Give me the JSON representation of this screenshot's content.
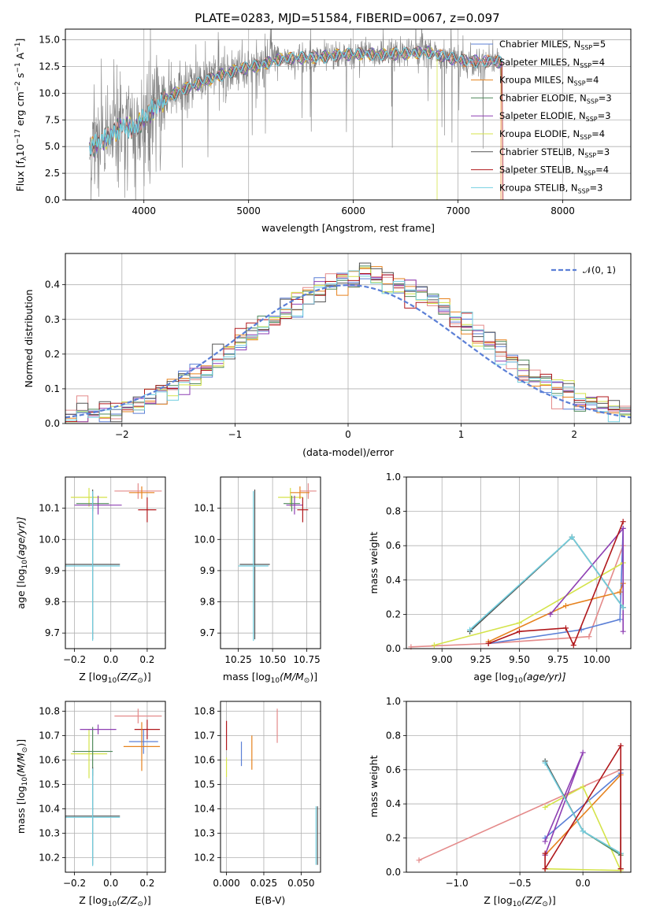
{
  "figure": {
    "title": "PLATE=0283, MJD=51584, FIBERID=0067, z=0.097"
  },
  "models": [
    {
      "key": "chabrier_miles",
      "label": "Chabrier MILES, N",
      "nssp": "5",
      "color": "#5b7fd6"
    },
    {
      "key": "salpeter_miles",
      "label": "Salpeter MILES, N",
      "nssp": "4",
      "color": "#e48a8a"
    },
    {
      "key": "kroupa_miles",
      "label": "Kroupa MILES, N",
      "nssp": "4",
      "color": "#e6821e"
    },
    {
      "key": "chabrier_elodie",
      "label": "Chabrier ELODIE, N",
      "nssp": "3",
      "color": "#4f8a5c"
    },
    {
      "key": "salpeter_elodie",
      "label": "Salpeter ELODIE, N",
      "nssp": "3",
      "color": "#8e3fb3"
    },
    {
      "key": "kroupa_elodie",
      "label": "Kroupa ELODIE, N",
      "nssp": "4",
      "color": "#d4e34a"
    },
    {
      "key": "chabrier_stelib",
      "label": "Chabrier STELIB, N",
      "nssp": "3",
      "color": "#555555"
    },
    {
      "key": "salpeter_stelib",
      "label": "Salpeter STELIB, N",
      "nssp": "4",
      "color": "#b0181c"
    },
    {
      "key": "kroupa_stelib",
      "label": "Kroupa STELIB, N",
      "nssp": "3",
      "color": "#72cfe0"
    }
  ],
  "chart_data": [
    {
      "id": "spectrum",
      "type": "line",
      "xlabel": "wavelength [Angstrom, rest frame]",
      "ylabel": "Flux [f",
      "ylabel_sub": "λ",
      "ylabel_rest": "10",
      "ylabel_exp1": "−17",
      "ylabel_mid": " erg cm",
      "ylabel_exp2": "−2",
      "ylabel_mid2": " s",
      "ylabel_exp3": "−1",
      "ylabel_mid3": " A",
      "ylabel_exp4": "−1",
      "ylabel_end": "]",
      "xlim": [
        3250,
        8650
      ],
      "ylim": [
        0,
        16
      ],
      "xticks": [
        4000,
        5000,
        6000,
        7000,
        8000
      ],
      "yticks": [
        "0.0",
        "2.5",
        "5.0",
        "7.5",
        "10.0",
        "12.5",
        "15.0"
      ],
      "legend_sub": "SSP",
      "legend_position": "upper right",
      "continuum_knots": [
        [
          3480,
          4.8
        ],
        [
          3600,
          5.5
        ],
        [
          3700,
          6.2
        ],
        [
          3800,
          7.0
        ],
        [
          3900,
          6.6
        ],
        [
          4000,
          7.6
        ],
        [
          4100,
          8.6
        ],
        [
          4200,
          9.4
        ],
        [
          4300,
          10.0
        ],
        [
          4500,
          10.8
        ],
        [
          4700,
          11.6
        ],
        [
          4900,
          12.2
        ],
        [
          5100,
          12.6
        ],
        [
          5300,
          13.2
        ],
        [
          5500,
          13.3
        ],
        [
          5700,
          13.4
        ],
        [
          5900,
          13.6
        ],
        [
          6100,
          13.7
        ],
        [
          6300,
          13.6
        ],
        [
          6500,
          13.7
        ],
        [
          6700,
          13.9
        ],
        [
          6900,
          13.3
        ],
        [
          7100,
          13.0
        ],
        [
          7300,
          13.0
        ],
        [
          7420,
          12.9
        ]
      ],
      "drops": [
        {
          "model": "kroupa_elodie",
          "x": 6800
        },
        {
          "model": "kroupa_miles",
          "x": 7410
        },
        {
          "model": "salpeter_stelib",
          "x": 7430
        }
      ]
    },
    {
      "id": "residuals",
      "type": "step-histogram",
      "xlabel": "(data-model)/error",
      "ylabel": "Normed distribution",
      "xlim": [
        -2.5,
        2.5
      ],
      "ylim": [
        0,
        0.49
      ],
      "xticks": [
        "−2",
        "−1",
        "0",
        "1",
        "2"
      ],
      "yticks": [
        "0.0",
        "0.1",
        "0.2",
        "0.3",
        "0.4"
      ],
      "gaussian_label": "𝒩(0, 1)",
      "gaussian": {
        "mean": 0,
        "sigma": 1
      },
      "bin_width": 0.1
    },
    {
      "id": "age_vs_Z",
      "type": "errorbar",
      "xlabel": "Z [log",
      "xlabel_sub": "10",
      "xlabel_rest": "(Z/Z",
      "xlabel_sun": "⊙",
      "xlabel_end": ")]",
      "ylabel": "age  [log",
      "ylabel_sub": "10",
      "ylabel_rest": "(age/yr)]",
      "xlim": [
        -0.25,
        0.3
      ],
      "ylim": [
        9.65,
        10.2
      ],
      "xticks": [
        "−0.2",
        "0.0",
        "0.2"
      ],
      "yticks": [
        "9.7",
        "9.8",
        "9.9",
        "10.0",
        "10.1"
      ],
      "points": [
        {
          "model": "kroupa_elodie",
          "x": -0.12,
          "xerr": 0.1,
          "y": 10.135,
          "yerr": 0.03
        },
        {
          "model": "salpeter_elodie",
          "x": -0.07,
          "xerr": 0.13,
          "y": 10.11,
          "yerr": 0.03
        },
        {
          "model": "chabrier_elodie",
          "x": -0.1,
          "xerr": 0.09,
          "y": 10.115,
          "yerr": 0.025
        },
        {
          "model": "salpeter_miles",
          "x": 0.15,
          "xerr": 0.13,
          "y": 10.155,
          "yerr": 0.025
        },
        {
          "model": "kroupa_miles",
          "x": 0.17,
          "xerr": 0.07,
          "y": 10.15,
          "yerr": 0.02
        },
        {
          "model": "salpeter_stelib",
          "x": 0.2,
          "xerr": 0.05,
          "y": 10.095,
          "yerr": 0.04
        },
        {
          "model": "chabrier_stelib",
          "x": -0.1,
          "xerr": 0.15,
          "y": 9.92,
          "yerr": 0.24
        },
        {
          "model": "kroupa_stelib",
          "x": -0.1,
          "xerr": 0.15,
          "y": 9.915,
          "yerr": 0.24
        }
      ]
    },
    {
      "id": "age_vs_mass",
      "type": "errorbar",
      "xlabel": "mass [log",
      "xlabel_sub": "10",
      "xlabel_rest": "(M/M",
      "xlabel_sun": "⊙",
      "xlabel_end": ")]",
      "xlim": [
        10.12,
        10.85
      ],
      "ylim": [
        9.65,
        10.2
      ],
      "xticks": [
        "10.25",
        "10.50",
        "10.75"
      ],
      "yticks": [
        "9.7",
        "9.8",
        "9.9",
        "10.0",
        "10.1"
      ],
      "points": [
        {
          "model": "kroupa_elodie",
          "x": 10.63,
          "xerr": 0.09,
          "y": 10.135,
          "yerr": 0.03
        },
        {
          "model": "chabrier_elodie",
          "x": 10.64,
          "xerr": 0.06,
          "y": 10.115,
          "yerr": 0.025
        },
        {
          "model": "salpeter_elodie",
          "x": 10.66,
          "xerr": 0.06,
          "y": 10.11,
          "yerr": 0.03
        },
        {
          "model": "salpeter_miles",
          "x": 10.76,
          "xerr": 0.06,
          "y": 10.155,
          "yerr": 0.025
        },
        {
          "model": "kroupa_miles",
          "x": 10.7,
          "xerr": 0.07,
          "y": 10.15,
          "yerr": 0.02
        },
        {
          "model": "salpeter_stelib",
          "x": 10.72,
          "xerr": 0.04,
          "y": 10.095,
          "yerr": 0.04
        },
        {
          "model": "chabrier_stelib",
          "x": 10.37,
          "xerr": 0.11,
          "y": 9.92,
          "yerr": 0.24
        },
        {
          "model": "kroupa_stelib",
          "x": 10.36,
          "xerr": 0.11,
          "y": 9.915,
          "yerr": 0.24
        }
      ]
    },
    {
      "id": "mass_vs_Z",
      "type": "errorbar",
      "xlabel": "Z [log",
      "xlabel_sub": "10",
      "xlabel_rest": "(Z/Z",
      "xlabel_sun": "⊙",
      "xlabel_end": ")]",
      "ylabel": "mass [log",
      "ylabel_sub": "10",
      "ylabel_rest": "(M/M",
      "ylabel_sun": "⊙",
      "ylabel_end": ")]",
      "xlim": [
        -0.25,
        0.3
      ],
      "ylim": [
        10.14,
        10.84
      ],
      "xticks": [
        "−0.2",
        "0.0",
        "0.2"
      ],
      "yticks": [
        "10.2",
        "10.3",
        "10.4",
        "10.5",
        "10.6",
        "10.7",
        "10.8"
      ],
      "points": [
        {
          "model": "kroupa_elodie",
          "x": -0.12,
          "xerr": 0.1,
          "y": 10.625,
          "yerr": 0.1
        },
        {
          "model": "chabrier_elodie",
          "x": -0.1,
          "xerr": 0.11,
          "y": 10.635,
          "yerr": 0.1
        },
        {
          "model": "salpeter_elodie",
          "x": -0.07,
          "xerr": 0.1,
          "y": 10.725,
          "yerr": 0.02
        },
        {
          "model": "salpeter_miles",
          "x": 0.15,
          "xerr": 0.13,
          "y": 10.78,
          "yerr": 0.03
        },
        {
          "model": "salpeter_stelib",
          "x": 0.2,
          "xerr": 0.07,
          "y": 10.725,
          "yerr": 0.04
        },
        {
          "model": "chabrier_miles",
          "x": 0.18,
          "xerr": 0.08,
          "y": 10.675,
          "yerr": 0.05
        },
        {
          "model": "kroupa_miles",
          "x": 0.17,
          "xerr": 0.1,
          "y": 10.655,
          "yerr": 0.1
        },
        {
          "model": "chabrier_stelib",
          "x": -0.1,
          "xerr": 0.15,
          "y": 10.37,
          "yerr": 0.2
        },
        {
          "model": "kroupa_stelib",
          "x": -0.1,
          "xerr": 0.15,
          "y": 10.365,
          "yerr": 0.2
        }
      ]
    },
    {
      "id": "mass_vs_ebv",
      "type": "errorbar",
      "xlabel": "E(B-V)",
      "xlim": [
        -0.004,
        0.063
      ],
      "ylim": [
        10.14,
        10.84
      ],
      "xticks": [
        "0.000",
        "0.025",
        "0.050"
      ],
      "yticks": [
        "10.2",
        "10.3",
        "10.4",
        "10.5",
        "10.6",
        "10.7",
        "10.8"
      ],
      "points": [
        {
          "model": "salpeter_stelib",
          "x": 0.0,
          "y": 10.7,
          "yerr": 0.06
        },
        {
          "model": "kroupa_elodie",
          "x": 0.0,
          "y": 10.57,
          "yerr": 0.04
        },
        {
          "model": "chabrier_miles",
          "x": 0.01,
          "y": 10.625,
          "yerr": 0.05
        },
        {
          "model": "kroupa_miles",
          "x": 0.017,
          "y": 10.63,
          "yerr": 0.07
        },
        {
          "model": "salpeter_miles",
          "x": 0.034,
          "y": 10.74,
          "yerr": 0.07
        },
        {
          "model": "kroupa_stelib",
          "x": 0.06,
          "y": 10.29,
          "yerr": 0.12
        },
        {
          "model": "chabrier_stelib",
          "x": 0.061,
          "y": 10.29,
          "yerr": 0.12
        }
      ]
    },
    {
      "id": "mass_weight_vs_age",
      "type": "line",
      "xlabel": "age  [log",
      "xlabel_sub": "10",
      "xlabel_rest": "(age/yr)]",
      "ylabel": "mass weight",
      "xlim": [
        8.77,
        10.22
      ],
      "ylim": [
        0,
        1.0
      ],
      "xticks": [
        "9.00",
        "9.25",
        "9.50",
        "9.75",
        "10.00"
      ],
      "yticks": [
        "0.0",
        "0.2",
        "0.4",
        "0.6",
        "0.8",
        "1.0"
      ],
      "series": [
        {
          "model": "salpeter_miles",
          "x": [
            8.8,
            9.3,
            9.95,
            10.17
          ],
          "y": [
            0.01,
            0.03,
            0.07,
            0.6
          ]
        },
        {
          "model": "chabrier_miles",
          "x": [
            9.3,
            9.9,
            10.15,
            10.17
          ],
          "y": [
            0.03,
            0.11,
            0.17,
            0.7
          ]
        },
        {
          "model": "kroupa_miles",
          "x": [
            9.3,
            9.8,
            10.15,
            10.17
          ],
          "y": [
            0.04,
            0.25,
            0.33,
            0.38
          ]
        },
        {
          "model": "kroupa_elodie",
          "x": [
            8.95,
            9.5,
            10.17
          ],
          "y": [
            0.02,
            0.15,
            0.5
          ]
        },
        {
          "model": "salpeter_elodie",
          "x": [
            9.7,
            10.17,
            10.17
          ],
          "y": [
            0.2,
            0.7,
            0.1
          ]
        },
        {
          "model": "chabrier_elodie",
          "x": [
            9.18,
            9.84,
            10.17
          ],
          "y": [
            0.1,
            0.65,
            0.24
          ]
        },
        {
          "model": "chabrier_stelib",
          "x": [
            9.18,
            9.84,
            10.17
          ],
          "y": [
            0.1,
            0.65,
            0.24
          ]
        },
        {
          "model": "kroupa_stelib",
          "x": [
            9.18,
            9.84,
            10.17
          ],
          "y": [
            0.11,
            0.65,
            0.24
          ]
        },
        {
          "model": "salpeter_stelib",
          "x": [
            9.3,
            9.5,
            9.8,
            9.85,
            10.17
          ],
          "y": [
            0.03,
            0.1,
            0.12,
            0.02,
            0.74
          ]
        }
      ]
    },
    {
      "id": "mass_weight_vs_Z",
      "type": "line",
      "xlabel": "Z [log",
      "xlabel_sub": "10",
      "xlabel_rest": "(Z/Z",
      "xlabel_sun": "⊙",
      "xlabel_end": ")]",
      "ylabel": "mass weight",
      "xlim": [
        -1.4,
        0.38
      ],
      "ylim": [
        0,
        1.0
      ],
      "xticks": [
        "−1.0",
        "−0.5",
        "0.0"
      ],
      "yticks": [
        "0.0",
        "0.2",
        "0.4",
        "0.6",
        "0.8",
        "1.0"
      ],
      "series": [
        {
          "model": "salpeter_miles",
          "x": [
            -1.3,
            0.3,
            0.3
          ],
          "y": [
            0.07,
            0.6,
            0.02
          ]
        },
        {
          "model": "chabrier_miles",
          "x": [
            -0.3,
            0.3,
            0.3
          ],
          "y": [
            0.2,
            0.58,
            0.02
          ]
        },
        {
          "model": "kroupa_miles",
          "x": [
            -0.3,
            0.3,
            0.3
          ],
          "y": [
            0.1,
            0.57,
            0.02
          ]
        },
        {
          "model": "kroupa_elodie",
          "x": [
            -0.3,
            0.0,
            0.3,
            -0.3
          ],
          "y": [
            0.38,
            0.5,
            0.01,
            0.02
          ]
        },
        {
          "model": "salpeter_elodie",
          "x": [
            -0.3,
            0.0,
            -0.3
          ],
          "y": [
            0.18,
            0.7,
            0.1
          ]
        },
        {
          "model": "chabrier_elodie",
          "x": [
            -0.3,
            0.0,
            0.3
          ],
          "y": [
            0.65,
            0.24,
            0.1
          ]
        },
        {
          "model": "chabrier_stelib",
          "x": [
            -0.3,
            0.0,
            0.3,
            0.3
          ],
          "y": [
            0.65,
            0.24,
            0.11,
            0.6
          ]
        },
        {
          "model": "kroupa_stelib",
          "x": [
            -0.3,
            0.0,
            0.3
          ],
          "y": [
            0.64,
            0.24,
            0.11
          ]
        },
        {
          "model": "salpeter_stelib",
          "x": [
            -0.3,
            -0.3,
            0.3,
            0.3
          ],
          "y": [
            0.11,
            0.02,
            0.74,
            0.02
          ]
        }
      ]
    }
  ]
}
